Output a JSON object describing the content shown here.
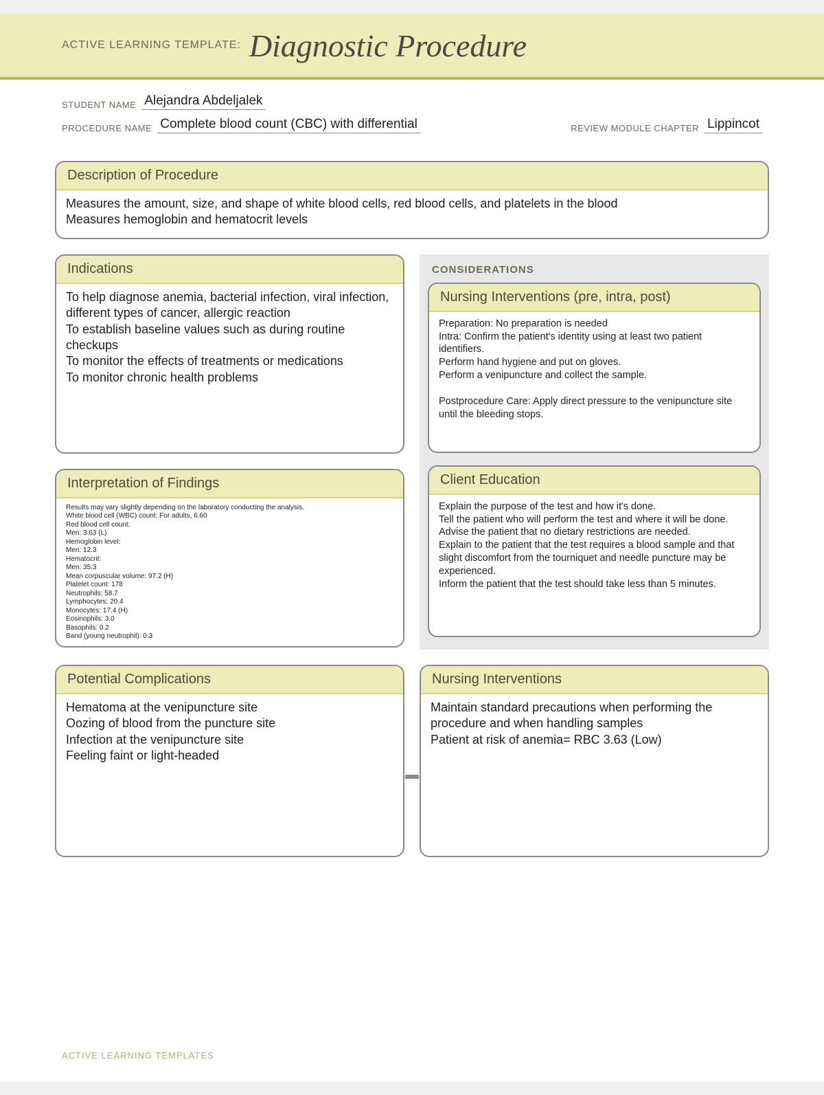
{
  "colors": {
    "header_bg": "#ecedb9",
    "header_border": "#b8b84f",
    "box_border": "#8a8a8a",
    "box_header_bg": "#ecedb9",
    "box_header_underline": "#d6d67a",
    "considerations_bg": "#e8e8e8",
    "label_color": "#6b6b55",
    "title_color": "#4a4a40",
    "footer_color": "#b0b070"
  },
  "header": {
    "prefix": "ACTIVE LEARNING TEMPLATE:",
    "title": "Diagnostic Procedure"
  },
  "meta": {
    "student_label": "STUDENT NAME",
    "student_value": "Alejandra Abdeljalek",
    "procedure_label": "PROCEDURE NAME",
    "procedure_value": "Complete blood count (CBC) with differential",
    "review_label": "REVIEW MODULE CHAPTER",
    "review_value": "Lippincot"
  },
  "boxes": {
    "description": {
      "title": "Description of Procedure",
      "body": "Measures the amount, size, and shape of white blood cells, red blood cells, and platelets in the blood\nMeasures hemoglobin and hematocrit levels"
    },
    "indications": {
      "title": "Indications",
      "body": "To help diagnose anemia, bacterial infection, viral infection, different types of cancer, allergic reaction\nTo establish baseline values such as during routine checkups\nTo monitor the effects of treatments or medications\nTo monitor chronic health problems"
    },
    "interpretation": {
      "title": "Interpretation of Findings",
      "body": "Results may vary slightly depending on the laboratory conducting the analysis.\nWhite blood cell (WBC) count: For adults, 6.60\nRed blood cell count:\nMen: 3.63 (L)\nHemoglobin level:\nMen: 12.3\nHematocrit:\nMen: 35.3\nMean corpuscular volume: 97.2 (H)\nPlatelet count: 178\nNeutrophils: 58.7\nLymphocytes: 20.4\nMonocytes: 17.4 (H)\nEosinophils: 3.0\nBasophils: 0.2\nBand (young neutrophil): 0.3"
    },
    "considerations_title": "CONSIDERATIONS",
    "nursing_pre": {
      "title": "Nursing Interventions (pre, intra, post)",
      "body": "Preparation: No preparation is needed\nIntra: Confirm the patient's identity using at least two patient identifiers.\nPerform hand hygiene and put on gloves.\nPerform a venipuncture and collect the sample.\n\nPostprocedure Care: Apply direct pressure to the venipuncture site until the bleeding stops."
    },
    "client_edu": {
      "title": "Client Education",
      "body": "Explain the purpose of the test and how it's done.\nTell the patient who will perform the test and where it will be done.\nAdvise the patient that no dietary restrictions are needed.\nExplain to the patient that the test requires a blood sample and that slight discomfort from the tourniquet and needle puncture may be experienced.\nInform the patient that the test should take less than 5 minutes."
    },
    "complications": {
      "title": "Potential Complications",
      "body": "Hematoma at the venipuncture site\nOozing of blood from the puncture site\nInfection at the venipuncture site\nFeeling faint or light-headed"
    },
    "nursing2": {
      "title": "Nursing Interventions",
      "body": "Maintain standard precautions when performing the procedure and when handling samples\nPatient at risk of anemia= RBC 3.63 (Low)"
    }
  },
  "footer": "ACTIVE LEARNING TEMPLATES"
}
